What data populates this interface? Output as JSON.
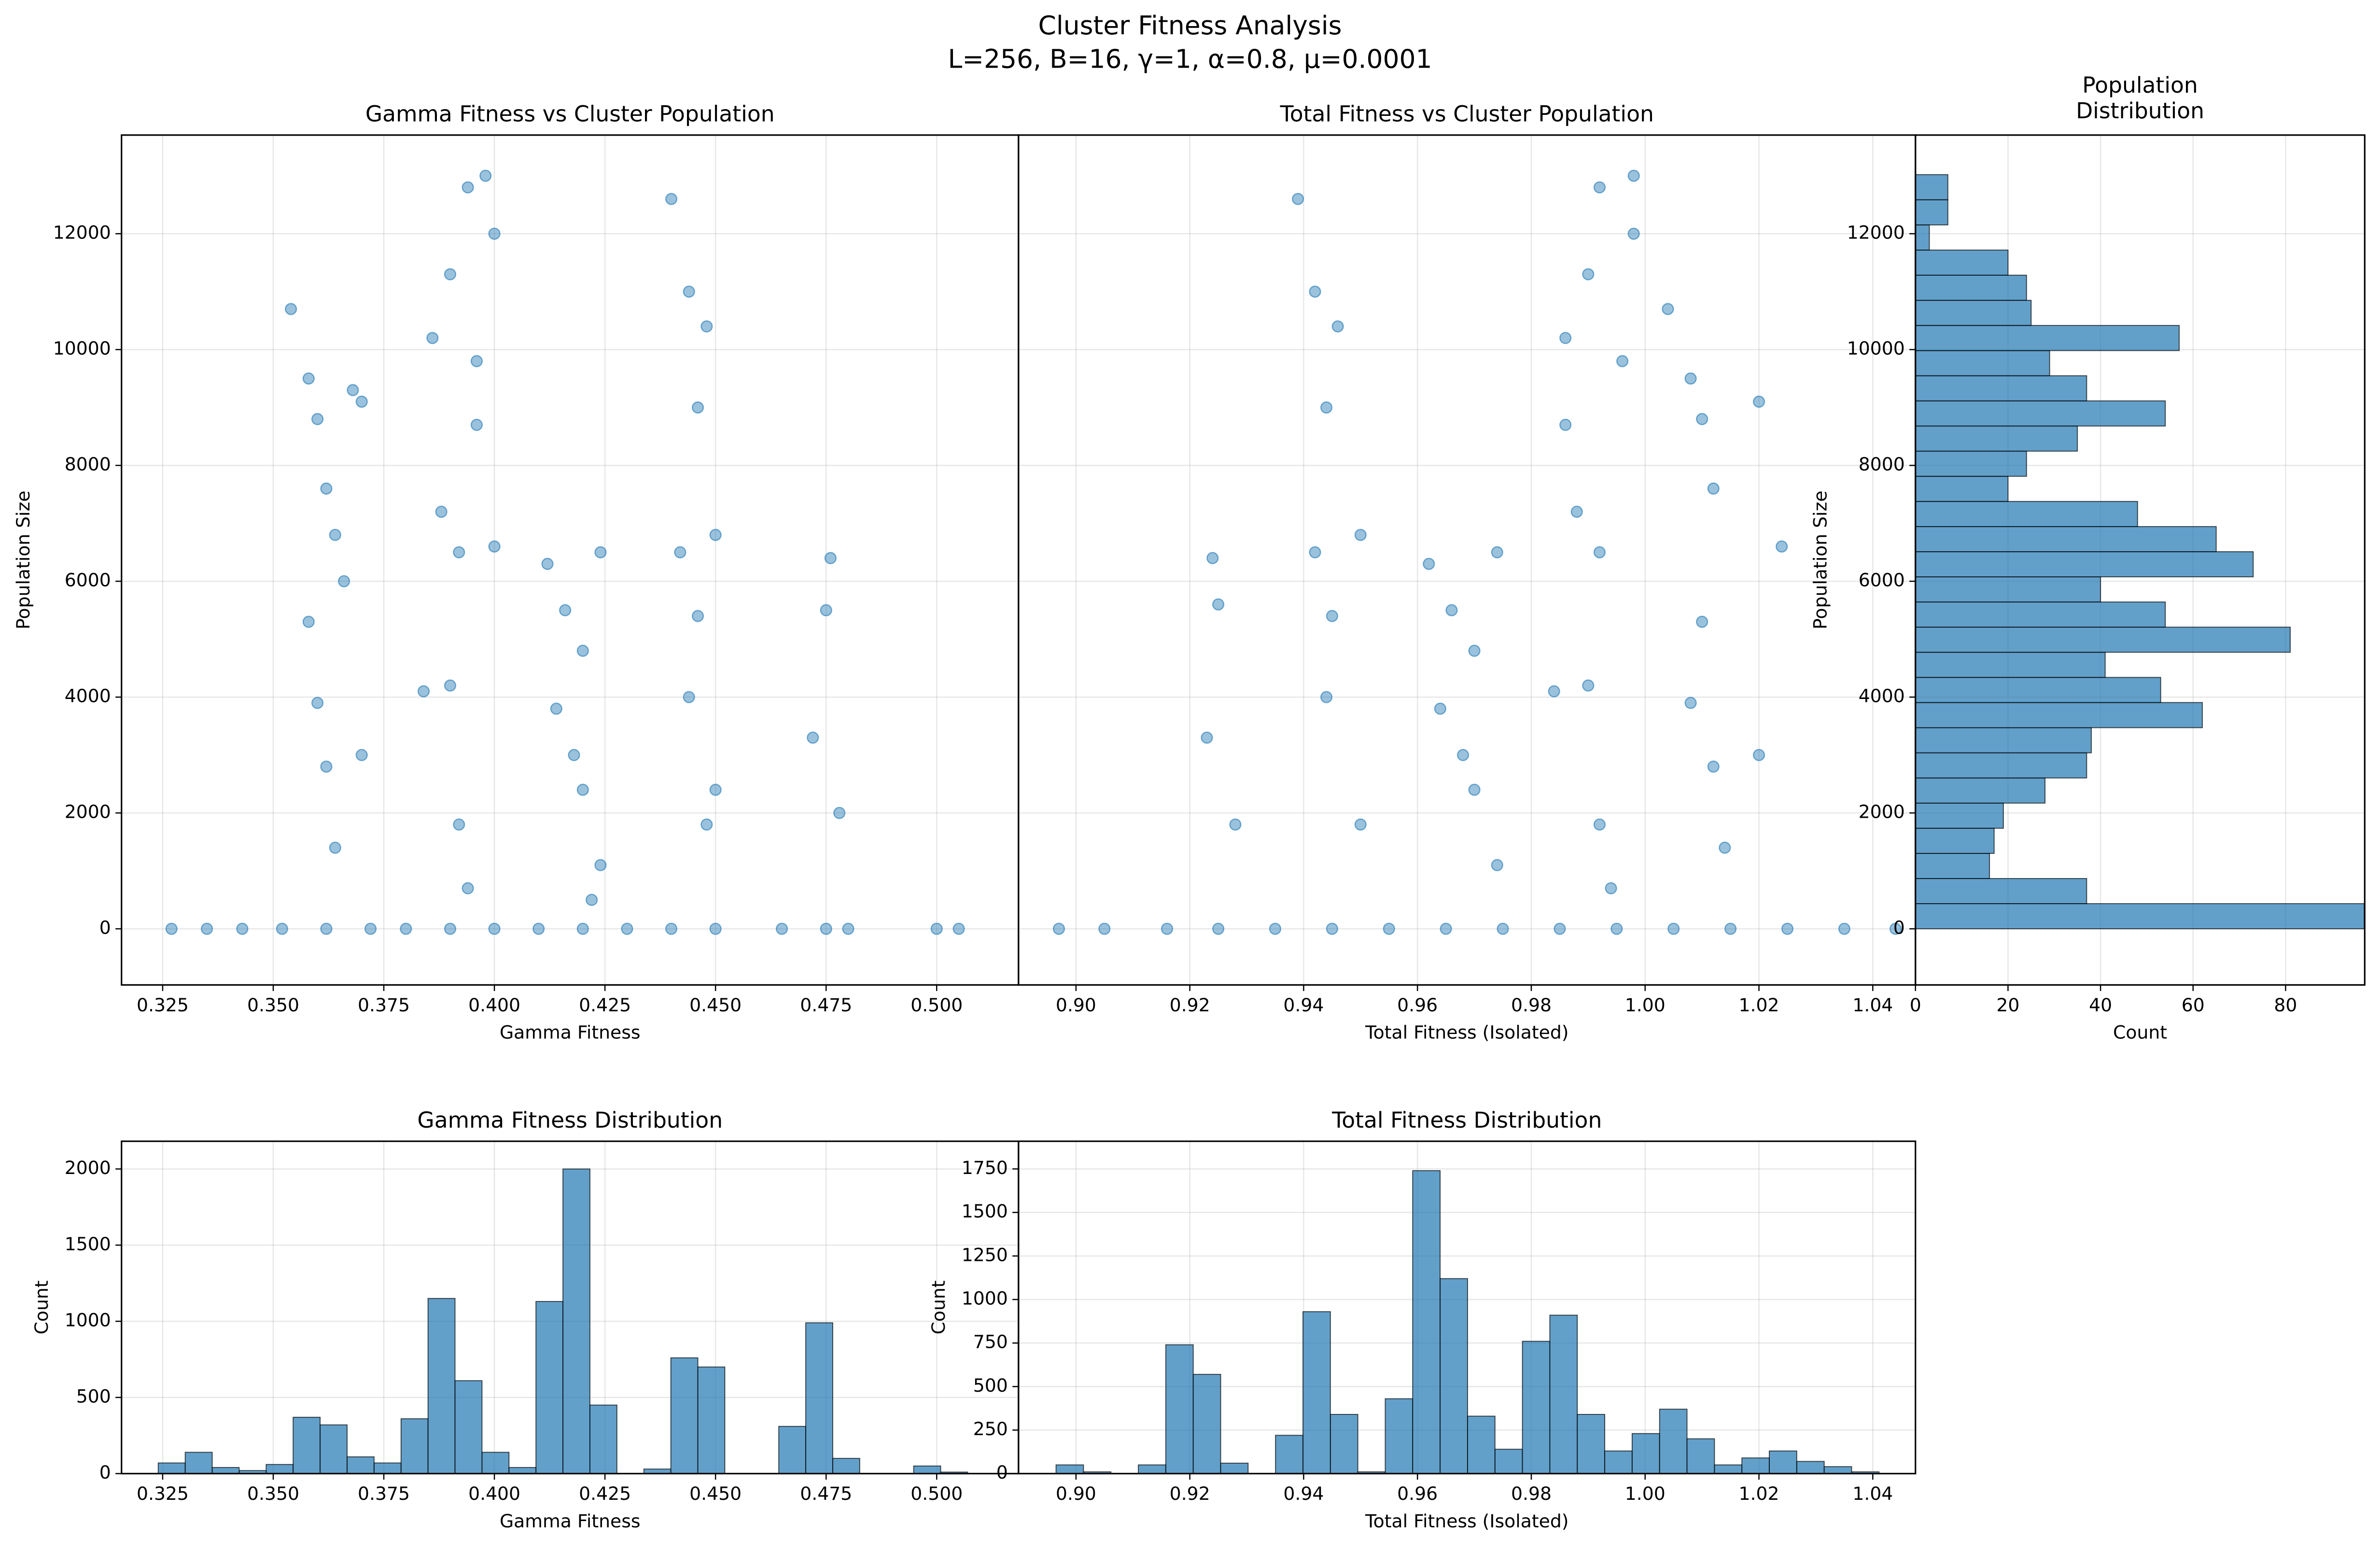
{
  "figure": {
    "title": "Cluster Fitness Analysis",
    "subtitle": "L=256, B=16, γ=1, α=0.8, μ=0.0001"
  },
  "chart_data": [
    {
      "type": "scatter",
      "title": "Gamma Fitness vs Cluster Population",
      "x_label": "Gamma Fitness",
      "y_label": "Population Size",
      "color": "#1f77b4",
      "grid": true,
      "ytick_labels": true,
      "x": [
        0.327,
        0.335,
        0.343,
        0.352,
        0.362,
        0.372,
        0.38,
        0.39,
        0.4,
        0.41,
        0.42,
        0.43,
        0.44,
        0.45,
        0.465,
        0.475,
        0.48,
        0.5,
        0.505,
        0.354,
        0.358,
        0.36,
        0.362,
        0.364,
        0.358,
        0.36,
        0.362,
        0.366,
        0.368,
        0.37,
        0.364,
        0.37,
        0.386,
        0.39,
        0.394,
        0.398,
        0.4,
        0.388,
        0.392,
        0.396,
        0.384,
        0.39,
        0.392,
        0.394,
        0.4,
        0.396,
        0.412,
        0.416,
        0.42,
        0.414,
        0.418,
        0.42,
        0.424,
        0.424,
        0.422,
        0.44,
        0.444,
        0.448,
        0.446,
        0.442,
        0.446,
        0.444,
        0.45,
        0.45,
        0.448,
        0.472,
        0.476,
        0.478,
        0.475
      ],
      "values": [
        0,
        0,
        0,
        0,
        0,
        0,
        0,
        0,
        0,
        0,
        0,
        0,
        0,
        0,
        0,
        0,
        0,
        0,
        0,
        10700,
        9500,
        8800,
        7600,
        6800,
        5300,
        3900,
        2800,
        6000,
        9300,
        9100,
        1400,
        3000,
        10200,
        11300,
        12800,
        13000,
        12000,
        7200,
        6500,
        9800,
        4100,
        4200,
        1800,
        700,
        6600,
        8700,
        6300,
        5500,
        4800,
        3800,
        3000,
        2400,
        6500,
        1100,
        500,
        12600,
        11000,
        10400,
        9000,
        6500,
        5400,
        4000,
        2400,
        6800,
        1800,
        3300,
        6400,
        2000,
        5500
      ],
      "xlim": [
        0.3157,
        0.5185
      ],
      "ylim": [
        -969,
        13703
      ],
      "xticks": [
        0.325,
        {
          "value": 0.35,
          "label": "0.350"
        },
        0.375,
        {
          "value": 0.4,
          "label": "0.400"
        },
        0.425,
        {
          "value": 0.45,
          "label": "0.450"
        },
        0.475,
        {
          "value": 0.5,
          "label": "0.500"
        }
      ],
      "yticks": [
        0,
        2000,
        4000,
        6000,
        8000,
        10000,
        12000
      ]
    },
    {
      "type": "scatter",
      "title": "Total Fitness vs Cluster Population",
      "x_label": "Total Fitness (Isolated)",
      "color": "#1f77b4",
      "grid": true,
      "ytick_labels": false,
      "x": [
        0.897,
        0.905,
        0.916,
        0.925,
        0.935,
        0.945,
        0.955,
        0.965,
        0.975,
        0.985,
        0.995,
        1.005,
        1.015,
        1.025,
        1.035,
        1.044,
        0.924,
        0.925,
        0.923,
        0.928,
        0.939,
        0.942,
        0.946,
        0.944,
        0.942,
        0.945,
        0.944,
        0.95,
        0.95,
        0.962,
        0.966,
        0.97,
        0.964,
        0.968,
        0.97,
        0.974,
        0.974,
        0.986,
        0.99,
        0.992,
        0.998,
        0.998,
        0.988,
        0.992,
        0.996,
        0.984,
        0.99,
        0.992,
        0.994,
        0.986,
        1.004,
        1.008,
        1.01,
        1.012,
        1.01,
        1.008,
        1.012,
        1.02,
        1.024,
        1.014,
        1.02
      ],
      "values": [
        0,
        0,
        0,
        0,
        0,
        0,
        0,
        0,
        0,
        0,
        0,
        0,
        0,
        0,
        0,
        0,
        6400,
        5600,
        3300,
        1800,
        12600,
        11000,
        10400,
        9000,
        6500,
        5400,
        4000,
        6800,
        1800,
        6300,
        5500,
        4800,
        3800,
        3000,
        2400,
        6500,
        1100,
        10200,
        11300,
        12800,
        13000,
        12000,
        7200,
        6500,
        9800,
        4100,
        4200,
        1800,
        700,
        8700,
        10700,
        9500,
        8800,
        7600,
        5300,
        3900,
        2800,
        9100,
        6600,
        1400,
        3000
      ],
      "xlim": [
        0.8899,
        1.0475
      ],
      "ylim": [
        -969,
        13703
      ],
      "xticks": [
        {
          "value": 0.9,
          "label": "0.90"
        },
        0.92,
        0.94,
        0.96,
        0.98,
        {
          "value": 1.0,
          "label": "1.00"
        },
        1.02,
        1.04
      ],
      "yticks": [
        0,
        2000,
        4000,
        6000,
        8000,
        10000,
        12000
      ]
    },
    {
      "type": "histogram",
      "orientation": "horizontal",
      "title": "Population\nDistribution",
      "x_label": "Count",
      "y_label": "Population Size",
      "color": "#1f77b4",
      "grid": true,
      "ytick_labels": true,
      "bins": [
        0,
        434,
        868,
        1302,
        1736,
        2170,
        2604,
        3038,
        3472,
        3906,
        4340,
        4774,
        5208,
        5642,
        6076,
        6510,
        6944,
        7378,
        7812,
        8246,
        8680,
        9114,
        9548,
        9982,
        10416,
        10850,
        11284,
        11718,
        12152,
        12586,
        13020
      ],
      "values": [
        97,
        37,
        16,
        17,
        19,
        28,
        37,
        38,
        62,
        53,
        41,
        81,
        54,
        40,
        73,
        65,
        48,
        20,
        24,
        35,
        54,
        37,
        29,
        57,
        25,
        24,
        20,
        3,
        7,
        7
      ],
      "xlim": [
        0,
        97.1
      ],
      "ylim": [
        -969,
        13703
      ],
      "xticks": [
        0,
        20,
        40,
        60,
        80
      ],
      "yticks": [
        0,
        2000,
        4000,
        6000,
        8000,
        10000,
        12000
      ]
    },
    {
      "type": "histogram",
      "orientation": "vertical",
      "title": "Gamma Fitness Distribution",
      "x_label": "Gamma Fitness",
      "y_label": "Count",
      "color": "#1f77b4",
      "grid": true,
      "ytick_labels": true,
      "bins": [
        0.324,
        0.3301,
        0.3362,
        0.3423,
        0.3484,
        0.3545,
        0.3606,
        0.3667,
        0.3728,
        0.3789,
        0.385,
        0.3911,
        0.3972,
        0.4033,
        0.4094,
        0.4155,
        0.4216,
        0.4277,
        0.4338,
        0.4399,
        0.446,
        0.4521,
        0.4582,
        0.4643,
        0.4704,
        0.4765,
        0.4826,
        0.4887,
        0.4948,
        0.5009,
        0.507
      ],
      "values": [
        70,
        140,
        40,
        20,
        60,
        370,
        320,
        110,
        70,
        360,
        1150,
        610,
        140,
        40,
        1130,
        2000,
        450,
        0,
        30,
        760,
        700,
        0,
        0,
        310,
        990,
        100,
        0,
        0,
        50,
        10
      ],
      "xlim": [
        0.3157,
        0.5185
      ],
      "ylim": [
        0,
        2182
      ],
      "xticks": [
        0.325,
        {
          "value": 0.35,
          "label": "0.350"
        },
        0.375,
        {
          "value": 0.4,
          "label": "0.400"
        },
        0.425,
        {
          "value": 0.45,
          "label": "0.450"
        },
        0.475,
        {
          "value": 0.5,
          "label": "0.500"
        }
      ],
      "yticks": [
        0,
        500,
        1000,
        1500,
        2000
      ]
    },
    {
      "type": "histogram",
      "orientation": "vertical",
      "title": "Total Fitness Distribution",
      "x_label": "Total Fitness (Isolated)",
      "y_label": "Count",
      "color": "#1f77b4",
      "grid": true,
      "ytick_labels": true,
      "bins": [
        0.8965,
        0.90132,
        0.90614,
        0.91096,
        0.91578,
        0.9206,
        0.92542,
        0.93024,
        0.93506,
        0.93988,
        0.9447,
        0.94952,
        0.95434,
        0.95916,
        0.96398,
        0.9688,
        0.97362,
        0.97844,
        0.98326,
        0.98808,
        0.9929,
        0.99772,
        1.00254,
        1.00736,
        1.01218,
        1.017,
        1.02182,
        1.02664,
        1.03146,
        1.03628,
        1.0411
      ],
      "values": [
        50,
        10,
        0,
        50,
        740,
        570,
        60,
        0,
        220,
        930,
        340,
        10,
        430,
        1740,
        1120,
        330,
        140,
        760,
        910,
        340,
        130,
        230,
        370,
        200,
        50,
        90,
        130,
        70,
        40,
        10
      ],
      "xlim": [
        0.8899,
        1.0475
      ],
      "ylim": [
        0,
        1909
      ],
      "xticks": [
        {
          "value": 0.9,
          "label": "0.90"
        },
        0.92,
        0.94,
        0.96,
        0.98,
        {
          "value": 1.0,
          "label": "1.00"
        },
        1.02,
        1.04
      ],
      "yticks": [
        0,
        250,
        500,
        750,
        1000,
        1250,
        1500,
        1750
      ]
    }
  ]
}
